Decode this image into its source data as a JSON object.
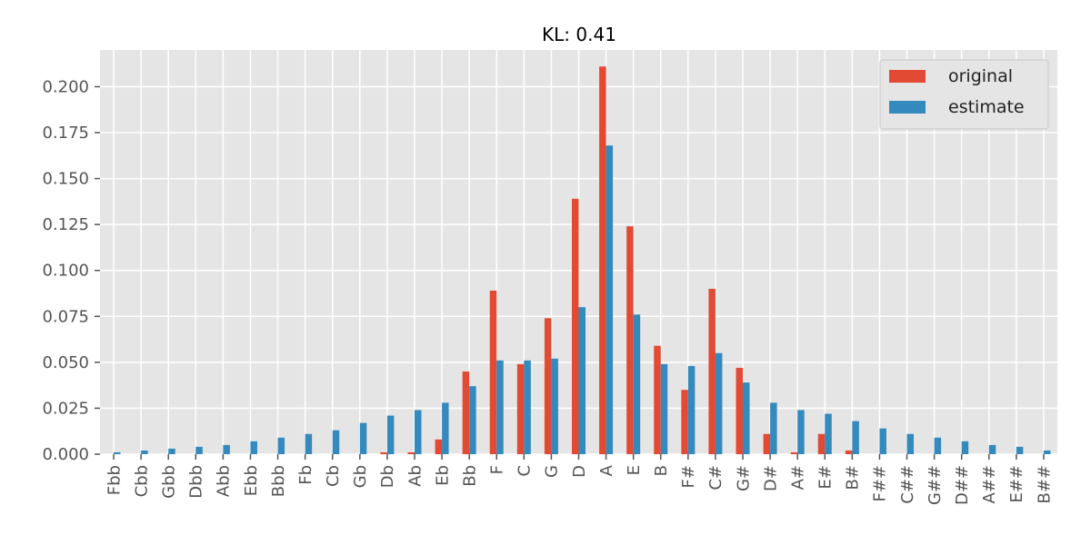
{
  "chart_data": {
    "type": "bar",
    "title": "KL: 0.41",
    "xlabel": "",
    "ylabel": "",
    "ylim": [
      0,
      0.22
    ],
    "yticks": [
      0.0,
      0.025,
      0.05,
      0.075,
      0.1,
      0.125,
      0.15,
      0.175,
      0.2
    ],
    "ytick_labels": [
      "0.000",
      "0.025",
      "0.050",
      "0.075",
      "0.100",
      "0.125",
      "0.150",
      "0.175",
      "0.200"
    ],
    "grid": true,
    "legend_position": "top-right",
    "categories": [
      "Fbb",
      "Cbb",
      "Gbb",
      "Dbb",
      "Abb",
      "Ebb",
      "Bbb",
      "Fb",
      "Cb",
      "Gb",
      "Db",
      "Ab",
      "Eb",
      "Bb",
      "F",
      "C",
      "G",
      "D",
      "A",
      "E",
      "B",
      "F#",
      "C#",
      "G#",
      "D#",
      "A#",
      "E#",
      "B#",
      "F##",
      "C##",
      "G##",
      "D##",
      "A##",
      "E##",
      "B##"
    ],
    "series": [
      {
        "name": "original",
        "color": "#E24A33",
        "values": [
          0,
          0,
          0,
          0,
          0,
          0,
          0,
          0,
          0,
          0,
          0.001,
          0.001,
          0.008,
          0.045,
          0.089,
          0.049,
          0.074,
          0.139,
          0.211,
          0.124,
          0.059,
          0.035,
          0.09,
          0.047,
          0.011,
          0.001,
          0.011,
          0.002,
          0,
          0,
          0,
          0,
          0,
          0,
          0
        ]
      },
      {
        "name": "estimate",
        "color": "#348ABD",
        "values": [
          0.001,
          0.002,
          0.003,
          0.004,
          0.005,
          0.007,
          0.009,
          0.011,
          0.013,
          0.017,
          0.021,
          0.024,
          0.028,
          0.037,
          0.051,
          0.051,
          0.052,
          0.08,
          0.168,
          0.076,
          0.049,
          0.048,
          0.055,
          0.039,
          0.028,
          0.024,
          0.022,
          0.018,
          0.014,
          0.011,
          0.009,
          0.007,
          0.005,
          0.004,
          0.002
        ]
      }
    ]
  }
}
